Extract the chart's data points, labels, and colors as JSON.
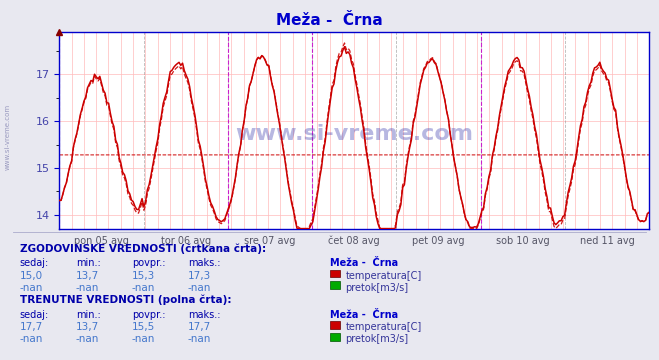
{
  "title": "Meža -  Črna",
  "title_color": "#0000cc",
  "bg_color": "#e8e8f0",
  "plot_bg_color": "#ffffff",
  "grid_color": "#ffbbbb",
  "axis_color": "#0000cc",
  "y_label_color": "#4444aa",
  "ylim_min": 13.7,
  "ylim_max": 17.9,
  "yticks": [
    14,
    15,
    16,
    17
  ],
  "num_points": 336,
  "days": [
    "pon 05 avg",
    "tor 06 avg",
    "sre 07 avg",
    "čet 08 avg",
    "pet 09 avg",
    "sob 10 avg",
    "ned 11 avg"
  ],
  "avg_line": 15.3,
  "line_color": "#cc0000",
  "text_color_bold": "#0000aa",
  "text_color_val": "#4477cc",
  "text_color_label": "#333399",
  "table_hist_label": "ZGODOVINSKE VREDNOSTI (črtkana črta):",
  "table_curr_label": "TRENUTNE VREDNOSTI (polna črta):",
  "table_headers": [
    "sedaj:",
    "min.:",
    "povpr.:",
    "maks.:"
  ],
  "hist_temp": [
    "15,0",
    "13,7",
    "15,3",
    "17,3"
  ],
  "hist_flow": [
    "-nan",
    "-nan",
    "-nan",
    "-nan"
  ],
  "curr_temp": [
    "17,7",
    "13,7",
    "15,5",
    "17,7"
  ],
  "curr_flow": [
    "-nan",
    "-nan",
    "-nan",
    "-nan"
  ],
  "site_label": "www.si-vreme.com"
}
